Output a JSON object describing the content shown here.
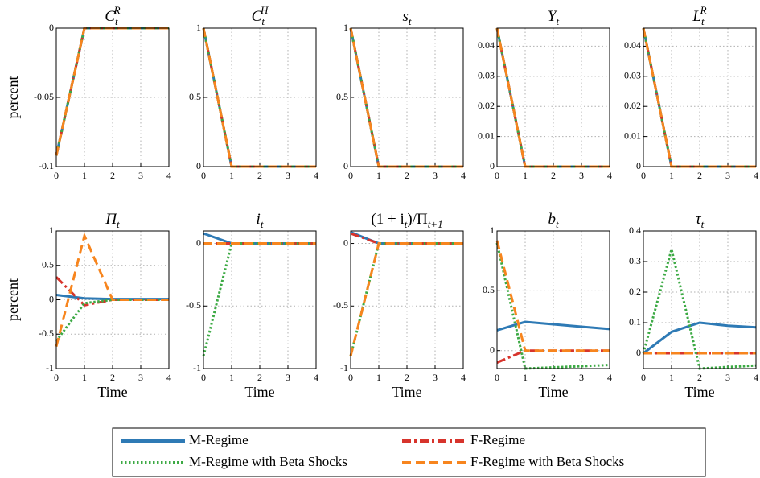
{
  "chart_data": [
    {
      "type": "line",
      "title": [
        {
          "text": "C"
        },
        {
          "text": "t",
          "pos": "sub"
        },
        {
          "text": "R",
          "pos": "sup"
        }
      ],
      "ylabel": "percent",
      "x": [
        0,
        1,
        2,
        3,
        4
      ],
      "xlim": [
        0,
        4
      ],
      "xticks": [
        0,
        1,
        2,
        3,
        4
      ],
      "ylim": [
        -0.1,
        0
      ],
      "yticks": [
        -0.1,
        -0.05,
        0
      ],
      "grid": true,
      "series": [
        {
          "name": "M-Regime",
          "color": "#2e7ab5",
          "style": "solid",
          "values": [
            -0.092,
            0,
            0,
            0,
            0
          ]
        },
        {
          "name": "F-Regime",
          "color": "#d7342c",
          "style": "dashdot",
          "values": [
            -0.092,
            0,
            0,
            0,
            0
          ]
        },
        {
          "name": "M-Regime with Beta Shocks",
          "color": "#3daa45",
          "style": "dotted",
          "values": [
            -0.092,
            0,
            0,
            0,
            0
          ]
        },
        {
          "name": "F-Regime with Beta Shocks",
          "color": "#f7851e",
          "style": "dashed",
          "values": [
            -0.092,
            0,
            0,
            0,
            0
          ]
        }
      ]
    },
    {
      "type": "line",
      "title": [
        {
          "text": "C"
        },
        {
          "text": "t",
          "pos": "sub"
        },
        {
          "text": "H",
          "pos": "sup"
        }
      ],
      "x": [
        0,
        1,
        2,
        3,
        4
      ],
      "xlim": [
        0,
        4
      ],
      "xticks": [
        0,
        1,
        2,
        3,
        4
      ],
      "ylim": [
        0,
        1
      ],
      "yticks": [
        0,
        0.5,
        1
      ],
      "grid": true,
      "series": [
        {
          "color": "#2e7ab5",
          "style": "solid",
          "values": [
            1,
            0,
            0,
            0,
            0
          ]
        },
        {
          "color": "#d7342c",
          "style": "dashdot",
          "values": [
            1,
            0,
            0,
            0,
            0
          ]
        },
        {
          "color": "#3daa45",
          "style": "dotted",
          "values": [
            1,
            0,
            0,
            0,
            0
          ]
        },
        {
          "color": "#f7851e",
          "style": "dashed",
          "values": [
            1,
            0,
            0,
            0,
            0
          ]
        }
      ]
    },
    {
      "type": "line",
      "title": [
        {
          "text": "s"
        },
        {
          "text": "t",
          "pos": "sub"
        }
      ],
      "x": [
        0,
        1,
        2,
        3,
        4
      ],
      "xlim": [
        0,
        4
      ],
      "xticks": [
        0,
        1,
        2,
        3,
        4
      ],
      "ylim": [
        0,
        1
      ],
      "yticks": [
        0,
        0.5,
        1
      ],
      "grid": true,
      "series": [
        {
          "color": "#2e7ab5",
          "style": "solid",
          "values": [
            1,
            0,
            0,
            0,
            0
          ]
        },
        {
          "color": "#d7342c",
          "style": "dashdot",
          "values": [
            1,
            0,
            0,
            0,
            0
          ]
        },
        {
          "color": "#3daa45",
          "style": "dotted",
          "values": [
            1,
            0,
            0,
            0,
            0
          ]
        },
        {
          "color": "#f7851e",
          "style": "dashed",
          "values": [
            1,
            0,
            0,
            0,
            0
          ]
        }
      ]
    },
    {
      "type": "line",
      "title": [
        {
          "text": "Y"
        },
        {
          "text": "t",
          "pos": "sub"
        }
      ],
      "x": [
        0,
        1,
        2,
        3,
        4
      ],
      "xlim": [
        0,
        4
      ],
      "xticks": [
        0,
        1,
        2,
        3,
        4
      ],
      "ylim": [
        0,
        0.046
      ],
      "yticks": [
        0,
        0.01,
        0.02,
        0.03,
        0.04
      ],
      "grid": true,
      "series": [
        {
          "color": "#2e7ab5",
          "style": "solid",
          "values": [
            0.046,
            0,
            0,
            0,
            0
          ]
        },
        {
          "color": "#d7342c",
          "style": "dashdot",
          "values": [
            0.046,
            0,
            0,
            0,
            0
          ]
        },
        {
          "color": "#3daa45",
          "style": "dotted",
          "values": [
            0.046,
            0,
            0,
            0,
            0
          ]
        },
        {
          "color": "#f7851e",
          "style": "dashed",
          "values": [
            0.046,
            0,
            0,
            0,
            0
          ]
        }
      ]
    },
    {
      "type": "line",
      "title": [
        {
          "text": "L"
        },
        {
          "text": "t",
          "pos": "sub"
        },
        {
          "text": "R",
          "pos": "sup"
        }
      ],
      "x": [
        0,
        1,
        2,
        3,
        4
      ],
      "xlim": [
        0,
        4
      ],
      "xticks": [
        0,
        1,
        2,
        3,
        4
      ],
      "ylim": [
        0,
        0.046
      ],
      "yticks": [
        0,
        0.01,
        0.02,
        0.03,
        0.04
      ],
      "grid": true,
      "series": [
        {
          "color": "#2e7ab5",
          "style": "solid",
          "values": [
            0.046,
            0,
            0,
            0,
            0
          ]
        },
        {
          "color": "#d7342c",
          "style": "dashdot",
          "values": [
            0.046,
            0,
            0,
            0,
            0
          ]
        },
        {
          "color": "#3daa45",
          "style": "dotted",
          "values": [
            0.046,
            0,
            0,
            0,
            0
          ]
        },
        {
          "color": "#f7851e",
          "style": "dashed",
          "values": [
            0.046,
            0,
            0,
            0,
            0
          ]
        }
      ]
    },
    {
      "type": "line",
      "title": [
        {
          "text": "Π"
        },
        {
          "text": "t",
          "pos": "sub"
        }
      ],
      "ylabel": "percent",
      "xlabel": "Time",
      "x": [
        0,
        1,
        2,
        3,
        4
      ],
      "xlim": [
        0,
        4
      ],
      "xticks": [
        0,
        1,
        2,
        3,
        4
      ],
      "ylim": [
        -1,
        1
      ],
      "yticks": [
        -1,
        -0.5,
        0,
        0.5,
        1
      ],
      "grid": true,
      "series": [
        {
          "color": "#2e7ab5",
          "style": "solid",
          "values": [
            0.07,
            0.02,
            0.01,
            0.01,
            0.01
          ]
        },
        {
          "color": "#d7342c",
          "style": "dashdot",
          "values": [
            0.33,
            -0.08,
            0,
            0,
            0
          ]
        },
        {
          "color": "#3daa45",
          "style": "dotted",
          "values": [
            -0.6,
            -0.05,
            0,
            0,
            0
          ]
        },
        {
          "color": "#f7851e",
          "style": "dashed",
          "values": [
            -0.68,
            0.93,
            0,
            0,
            0
          ]
        }
      ]
    },
    {
      "type": "line",
      "title": [
        {
          "text": "i"
        },
        {
          "text": "t",
          "pos": "sub"
        }
      ],
      "xlabel": "Time",
      "x": [
        0,
        1,
        2,
        3,
        4
      ],
      "xlim": [
        0,
        4
      ],
      "xticks": [
        0,
        1,
        2,
        3,
        4
      ],
      "ylim": [
        -1,
        0.1
      ],
      "yticks": [
        -1,
        -0.5,
        0
      ],
      "grid": true,
      "series": [
        {
          "color": "#2e7ab5",
          "style": "solid",
          "values": [
            0.08,
            0,
            0,
            0,
            0
          ]
        },
        {
          "color": "#d7342c",
          "style": "dashdot",
          "values": [
            0,
            0,
            0,
            0,
            0
          ]
        },
        {
          "color": "#3daa45",
          "style": "dotted",
          "values": [
            -0.9,
            0,
            0,
            0,
            0
          ]
        },
        {
          "color": "#f7851e",
          "style": "dashed",
          "values": [
            0,
            0,
            0,
            0,
            0
          ]
        }
      ]
    },
    {
      "type": "line",
      "title": [
        {
          "text": "(1 + i"
        },
        {
          "text": "t",
          "pos": "sub"
        },
        {
          "text": ")/Π"
        },
        {
          "text": "t+1",
          "pos": "sub"
        }
      ],
      "xlabel": "Time",
      "x": [
        0,
        1,
        2,
        3,
        4
      ],
      "xlim": [
        0,
        4
      ],
      "xticks": [
        0,
        1,
        2,
        3,
        4
      ],
      "ylim": [
        -1,
        0.1
      ],
      "yticks": [
        -1,
        -0.5,
        0
      ],
      "grid": true,
      "series": [
        {
          "color": "#2e7ab5",
          "style": "solid",
          "values": [
            0.09,
            0,
            0,
            0,
            0
          ]
        },
        {
          "color": "#d7342c",
          "style": "dashdot",
          "values": [
            0.08,
            0,
            0,
            0,
            0
          ]
        },
        {
          "color": "#3daa45",
          "style": "dotted",
          "values": [
            -0.9,
            0,
            0,
            0,
            0
          ]
        },
        {
          "color": "#f7851e",
          "style": "dashed",
          "values": [
            -0.9,
            0,
            0,
            0,
            0
          ]
        }
      ]
    },
    {
      "type": "line",
      "title": [
        {
          "text": "b"
        },
        {
          "text": "t",
          "pos": "sub"
        }
      ],
      "xlabel": "Time",
      "x": [
        0,
        1,
        2,
        3,
        4
      ],
      "xlim": [
        0,
        4
      ],
      "xticks": [
        0,
        1,
        2,
        3,
        4
      ],
      "ylim": [
        -0.15,
        1
      ],
      "yticks": [
        0,
        0.5,
        1
      ],
      "grid": true,
      "series": [
        {
          "color": "#2e7ab5",
          "style": "solid",
          "values": [
            0.17,
            0.24,
            0.22,
            0.2,
            0.18
          ]
        },
        {
          "color": "#d7342c",
          "style": "dashdot",
          "values": [
            -0.1,
            0,
            0,
            0,
            0
          ]
        },
        {
          "color": "#3daa45",
          "style": "dotted",
          "values": [
            0.9,
            -0.15,
            -0.14,
            -0.13,
            -0.12
          ]
        },
        {
          "color": "#f7851e",
          "style": "dashed",
          "values": [
            0.92,
            0,
            0,
            0,
            0
          ]
        }
      ]
    },
    {
      "type": "line",
      "title": [
        {
          "text": "τ"
        },
        {
          "text": "t",
          "pos": "sub"
        }
      ],
      "xlabel": "Time",
      "x": [
        0,
        1,
        2,
        3,
        4
      ],
      "xlim": [
        0,
        4
      ],
      "xticks": [
        0,
        1,
        2,
        3,
        4
      ],
      "ylim": [
        -0.05,
        0.4
      ],
      "yticks": [
        0,
        0.1,
        0.2,
        0.3,
        0.4
      ],
      "grid": true,
      "series": [
        {
          "color": "#2e7ab5",
          "style": "solid",
          "values": [
            0,
            0.07,
            0.1,
            0.09,
            0.085
          ]
        },
        {
          "color": "#d7342c",
          "style": "dashdot",
          "values": [
            0,
            0,
            0,
            0,
            0
          ]
        },
        {
          "color": "#3daa45",
          "style": "dotted",
          "values": [
            0,
            0.34,
            -0.05,
            -0.045,
            -0.04
          ]
        },
        {
          "color": "#f7851e",
          "style": "dashed",
          "values": [
            0,
            0,
            0,
            0,
            0
          ]
        }
      ]
    }
  ]
}
